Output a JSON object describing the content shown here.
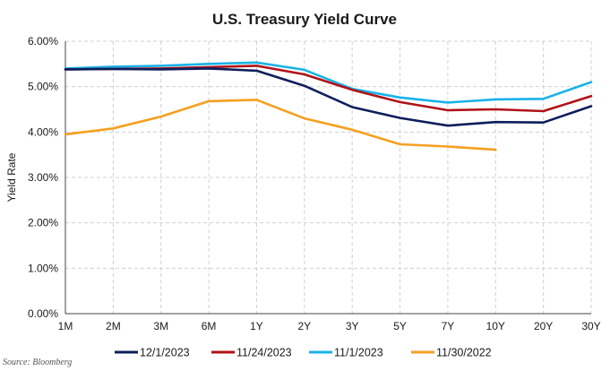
{
  "chart_data": {
    "type": "line",
    "title": "U.S. Treasury Yield Curve",
    "xlabel": "",
    "ylabel": "Yield Rate",
    "categories": [
      "1M",
      "2M",
      "3M",
      "6M",
      "1Y",
      "2Y",
      "3Y",
      "5Y",
      "7Y",
      "10Y",
      "20Y",
      "30Y"
    ],
    "y_ticks": [
      "0.00%",
      "1.00%",
      "2.00%",
      "3.00%",
      "4.00%",
      "5.00%",
      "6.00%"
    ],
    "ylim": [
      0,
      6
    ],
    "grid": true,
    "legend_position": "bottom",
    "series": [
      {
        "name": "12/1/2023",
        "color": "#0d1f5c",
        "values": [
          5.38,
          5.39,
          5.38,
          5.4,
          5.35,
          5.02,
          4.55,
          4.31,
          4.14,
          4.22,
          4.21,
          4.57
        ]
      },
      {
        "name": "11/24/2023",
        "color": "#b01217",
        "values": [
          5.38,
          5.39,
          5.4,
          5.43,
          5.46,
          5.27,
          4.93,
          4.66,
          4.48,
          4.5,
          4.46,
          4.79
        ]
      },
      {
        "name": "11/1/2023",
        "color": "#1ab2e8",
        "values": [
          5.4,
          5.44,
          5.46,
          5.5,
          5.53,
          5.37,
          4.95,
          4.76,
          4.65,
          4.72,
          4.73,
          5.1
        ]
      },
      {
        "name": "11/30/2022",
        "color": "#f5a020",
        "values": [
          3.95,
          4.08,
          4.34,
          4.68,
          4.71,
          4.3,
          4.05,
          3.73,
          3.68,
          3.61,
          null,
          null
        ]
      }
    ]
  },
  "source": "Source: Bloomberg"
}
